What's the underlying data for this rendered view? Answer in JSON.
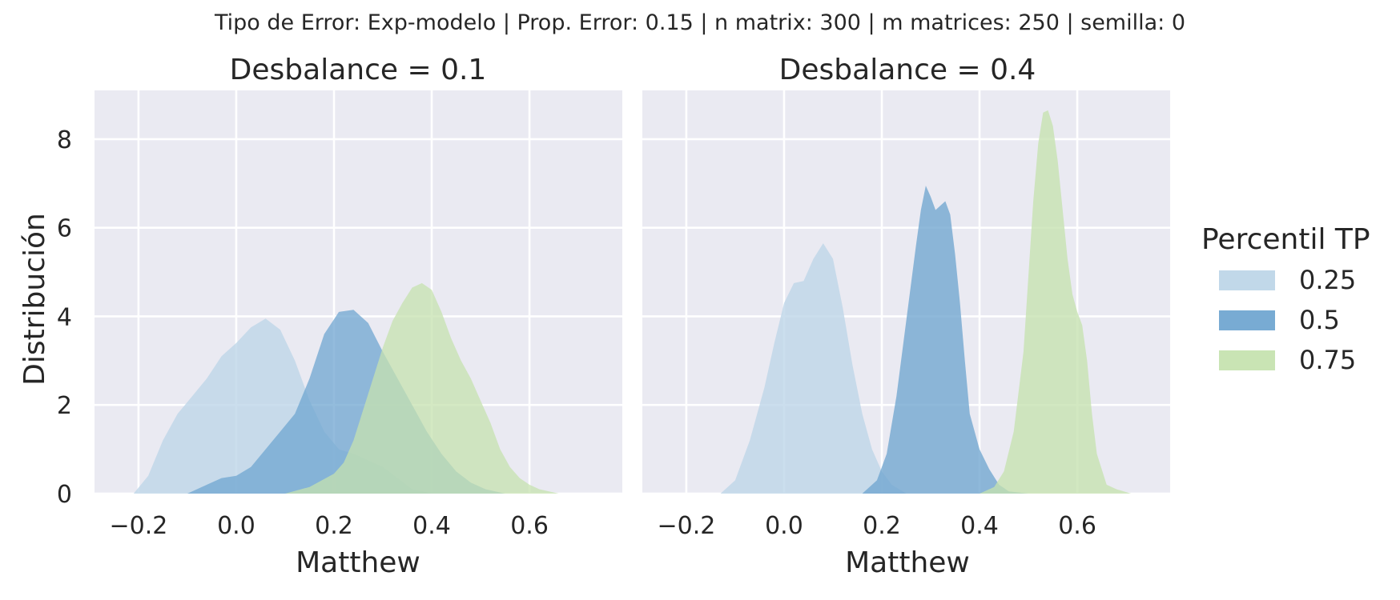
{
  "chart_data": {
    "type": "area",
    "suptitle": "Tipo de Error: Exp-modelo | Prop. Error: 0.15 | n matrix: 300 | m matrices: 250 | semilla: 0",
    "xlabel": "Matthew",
    "ylabel": "Distribución",
    "xlim": [
      -0.29,
      0.79
    ],
    "ylim": [
      0,
      9.1
    ],
    "xticks": [
      -0.2,
      0.0,
      0.2,
      0.4,
      0.6
    ],
    "xtick_labels": [
      "−0.2",
      "0.0",
      "0.2",
      "0.4",
      "0.6"
    ],
    "yticks": [
      0,
      2,
      4,
      6,
      8
    ],
    "ytick_labels": [
      "0",
      "2",
      "4",
      "6",
      "8"
    ],
    "grid": true,
    "legend": {
      "title": "Percentil TP",
      "placement": "right",
      "entries": [
        {
          "label": "0.25",
          "color": "#c1d8e9"
        },
        {
          "label": "0.5",
          "color": "#78abd3"
        },
        {
          "label": "0.75",
          "color": "#c9e4b4"
        }
      ]
    },
    "panels": [
      {
        "title": "Desbalance = 0.1",
        "series": [
          {
            "name": "0.25",
            "color": "#bcd5e8",
            "opacity": 0.78,
            "x": [
              -0.21,
              -0.18,
              -0.15,
              -0.12,
              -0.09,
              -0.06,
              -0.03,
              0.0,
              0.03,
              0.06,
              0.09,
              0.12,
              0.15,
              0.18,
              0.21,
              0.24,
              0.27,
              0.3,
              0.33,
              0.36,
              0.4
            ],
            "y": [
              0,
              0.4,
              1.2,
              1.8,
              2.2,
              2.6,
              3.1,
              3.4,
              3.75,
              3.95,
              3.7,
              3.0,
              2.1,
              1.4,
              1.0,
              0.9,
              0.75,
              0.6,
              0.35,
              0.1,
              0
            ]
          },
          {
            "name": "0.5",
            "color": "#6fa5d0",
            "opacity": 0.75,
            "x": [
              -0.1,
              -0.06,
              -0.03,
              0.0,
              0.03,
              0.06,
              0.09,
              0.12,
              0.15,
              0.18,
              0.21,
              0.24,
              0.27,
              0.3,
              0.33,
              0.36,
              0.39,
              0.42,
              0.45,
              0.48,
              0.51,
              0.55
            ],
            "y": [
              0,
              0.2,
              0.35,
              0.4,
              0.6,
              1.0,
              1.4,
              1.8,
              2.6,
              3.6,
              4.1,
              4.15,
              3.85,
              3.2,
              2.6,
              2.0,
              1.4,
              0.9,
              0.5,
              0.25,
              0.1,
              0
            ]
          },
          {
            "name": "0.75",
            "color": "#c5e2af",
            "opacity": 0.75,
            "x": [
              0.1,
              0.15,
              0.2,
              0.22,
              0.24,
              0.26,
              0.28,
              0.3,
              0.32,
              0.34,
              0.36,
              0.38,
              0.4,
              0.42,
              0.44,
              0.46,
              0.48,
              0.5,
              0.52,
              0.54,
              0.56,
              0.58,
              0.6,
              0.62,
              0.66
            ],
            "y": [
              0,
              0.15,
              0.45,
              0.7,
              1.2,
              1.9,
              2.6,
              3.3,
              3.9,
              4.3,
              4.65,
              4.75,
              4.6,
              4.1,
              3.5,
              3.0,
              2.6,
              2.1,
              1.6,
              1.0,
              0.6,
              0.35,
              0.2,
              0.1,
              0
            ]
          }
        ]
      },
      {
        "title": "Desbalance = 0.4",
        "series": [
          {
            "name": "0.25",
            "color": "#bcd5e8",
            "opacity": 0.78,
            "x": [
              -0.13,
              -0.1,
              -0.07,
              -0.04,
              -0.02,
              0.0,
              0.02,
              0.04,
              0.06,
              0.08,
              0.1,
              0.12,
              0.14,
              0.16,
              0.18,
              0.2,
              0.22,
              0.25
            ],
            "y": [
              0,
              0.3,
              1.2,
              2.4,
              3.4,
              4.3,
              4.75,
              4.8,
              5.3,
              5.65,
              5.3,
              4.2,
              2.9,
              1.8,
              1.0,
              0.5,
              0.2,
              0
            ]
          },
          {
            "name": "0.5",
            "color": "#6fa5d0",
            "opacity": 0.78,
            "x": [
              0.16,
              0.19,
              0.21,
              0.23,
              0.25,
              0.27,
              0.28,
              0.29,
              0.3,
              0.31,
              0.32,
              0.33,
              0.34,
              0.35,
              0.36,
              0.37,
              0.38,
              0.4,
              0.42,
              0.44,
              0.46,
              0.5
            ],
            "y": [
              0,
              0.3,
              0.9,
              2.2,
              3.9,
              5.6,
              6.4,
              6.95,
              6.7,
              6.4,
              6.5,
              6.6,
              6.3,
              5.4,
              4.3,
              3.0,
              1.8,
              1.0,
              0.55,
              0.2,
              0.05,
              0
            ]
          },
          {
            "name": "0.75",
            "color": "#c5e2af",
            "opacity": 0.78,
            "x": [
              0.4,
              0.43,
              0.45,
              0.47,
              0.49,
              0.5,
              0.51,
              0.52,
              0.53,
              0.54,
              0.55,
              0.56,
              0.57,
              0.58,
              0.59,
              0.6,
              0.61,
              0.62,
              0.63,
              0.64,
              0.66,
              0.68,
              0.71
            ],
            "y": [
              0,
              0.15,
              0.5,
              1.4,
              3.2,
              4.9,
              6.6,
              7.9,
              8.6,
              8.65,
              8.3,
              7.5,
              6.4,
              5.3,
              4.5,
              4.1,
              3.8,
              3.0,
              1.8,
              0.9,
              0.2,
              0.1,
              0
            ]
          }
        ]
      }
    ]
  }
}
